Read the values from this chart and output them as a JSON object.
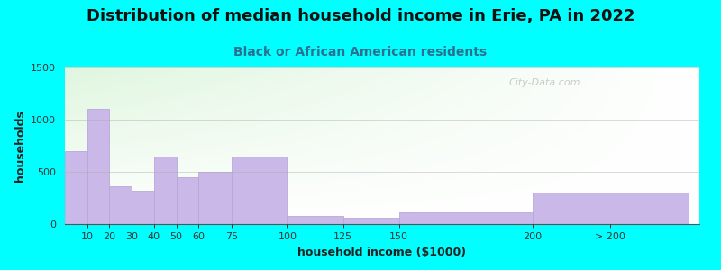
{
  "title": "Distribution of median household income in Erie, PA in 2022",
  "subtitle": "Black or African American residents",
  "xlabel": "household income ($1000)",
  "ylabel": "households",
  "background_color": "#00FFFF",
  "bar_color": "#C9B8E8",
  "bar_edge_color": "#B8A8D8",
  "values": [
    700,
    1100,
    360,
    320,
    650,
    450,
    500,
    650,
    75,
    60,
    110,
    300
  ],
  "bar_lefts": [
    0,
    10,
    20,
    30,
    40,
    50,
    60,
    75,
    100,
    125,
    150,
    210
  ],
  "bar_widths": [
    10,
    10,
    10,
    10,
    10,
    10,
    15,
    25,
    25,
    25,
    60,
    70
  ],
  "ylim": [
    0,
    1500
  ],
  "yticks": [
    0,
    500,
    1000,
    1500
  ],
  "xtick_labels": [
    "10",
    "20",
    "30",
    "40",
    "50",
    "60",
    "75",
    "100",
    "125",
    "150",
    "200",
    "> 200"
  ],
  "xtick_positions": [
    10,
    20,
    30,
    40,
    50,
    60,
    75,
    100,
    125,
    150,
    210,
    245
  ],
  "xlim": [
    0,
    285
  ],
  "title_fontsize": 13,
  "subtitle_fontsize": 10,
  "axis_label_fontsize": 9,
  "tick_fontsize": 8,
  "watermark_text": "City-Data.com"
}
